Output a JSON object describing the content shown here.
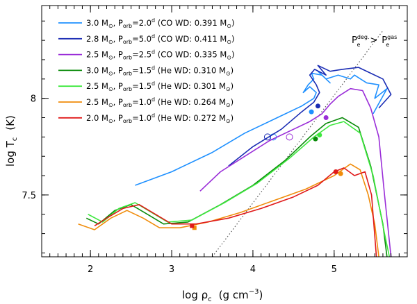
{
  "chart_data": {
    "type": "line",
    "title": "",
    "xlabel": {
      "prefix": "log ",
      "rho": "ρ",
      "sub": "c",
      "units": "(g cm",
      "sup": "−3",
      "close": ")"
    },
    "ylabel": {
      "prefix": "log T",
      "sub": "c",
      "units": "(K)"
    },
    "xlim": [
      1.4,
      5.9
    ],
    "ylim": [
      7.18,
      8.48
    ],
    "xticks": [
      "2",
      "3",
      "4",
      "5"
    ],
    "xtick_values": [
      2,
      3,
      4,
      5
    ],
    "yticks": [
      "7.5",
      "8"
    ],
    "ytick_values": [
      7.5,
      8.0
    ],
    "annotation": {
      "p1": "P",
      "p1sup": "deg.",
      "p1sub": "e",
      "gt": ">",
      "p2": "P",
      "p2sup": "gas",
      "p2sub": "e"
    },
    "degeneracy_line": {
      "label": "Pe_deg = Pe_gas",
      "x": [
        3.5,
        5.6
      ],
      "y": [
        7.18,
        8.35
      ]
    },
    "series": [
      {
        "name": "3.0 M☉, Porb=2.0d (CO WD: 0.391 M☉)",
        "mass": "3.0",
        "porb": "2.0",
        "wdtype": "CO",
        "wdmass": "0.391",
        "color": "#1e90ff",
        "x": [
          2.55,
          3.0,
          3.5,
          3.9,
          4.3,
          4.6,
          4.75,
          4.78,
          4.7,
          4.62,
          4.68,
          4.75,
          4.72,
          4.85,
          4.95,
          4.8,
          4.9,
          5.05,
          5.2,
          5.25,
          5.4,
          5.55,
          5.5,
          5.65,
          5.48
        ],
        "y": [
          7.55,
          7.62,
          7.72,
          7.82,
          7.9,
          7.96,
          8.0,
          8.03,
          8.06,
          8.03,
          8.07,
          8.1,
          8.13,
          8.12,
          8.08,
          8.14,
          8.1,
          8.12,
          8.1,
          8.12,
          8.08,
          8.07,
          8.0,
          8.05,
          7.92
        ],
        "dot": [
          4.72,
          7.93
        ],
        "circle": [
          4.25,
          7.8
        ]
      },
      {
        "name": "2.8 M☉, Porb=5.0d (CO WD: 0.411 M☉)",
        "mass": "2.8",
        "porb": "5.0",
        "wdtype": "CO",
        "wdmass": "0.411",
        "color": "#1a2cb4",
        "x": [
          3.7,
          4.0,
          4.35,
          4.6,
          4.75,
          4.82,
          4.78,
          4.7,
          4.76,
          4.9,
          4.8,
          4.95,
          5.1,
          5.3,
          5.45,
          5.6,
          5.7,
          5.55,
          5.55
        ],
        "y": [
          7.65,
          7.75,
          7.84,
          7.93,
          7.98,
          8.03,
          8.07,
          8.12,
          8.15,
          8.12,
          8.17,
          8.14,
          8.15,
          8.16,
          8.13,
          8.1,
          8.02,
          7.95,
          7.95
        ],
        "dot": [
          4.8,
          7.96
        ],
        "circle": [
          4.18,
          7.8
        ]
      },
      {
        "name": "2.5 M☉, Porb=2.5d (CO WD: 0.335 M☉)",
        "mass": "2.5",
        "porb": "2.5",
        "wdtype": "CO",
        "wdmass": "0.335",
        "color": "#9a2dd8",
        "x": [
          3.35,
          3.6,
          3.9,
          4.2,
          4.5,
          4.7,
          4.85,
          4.95,
          5.05,
          5.2,
          5.35,
          5.45,
          5.55,
          5.62,
          5.7
        ],
        "y": [
          7.52,
          7.62,
          7.7,
          7.78,
          7.84,
          7.88,
          7.92,
          7.97,
          8.01,
          8.05,
          8.04,
          7.95,
          7.8,
          7.5,
          7.18
        ],
        "dot": [
          4.9,
          7.9
        ],
        "circle": [
          4.45,
          7.8
        ]
      },
      {
        "name": "3.0 M☉, Porb=1.5d (He WD: 0.310 M☉)",
        "mass": "3.0",
        "porb": "1.5",
        "wdtype": "He",
        "wdmass": "0.310",
        "color": "#0a8a0a",
        "x": [
          1.95,
          2.1,
          2.3,
          2.5,
          2.7,
          2.9,
          3.2,
          3.6,
          4.0,
          4.4,
          4.7,
          4.9,
          5.1,
          5.3,
          5.45,
          5.6,
          5.65
        ],
        "y": [
          7.38,
          7.35,
          7.42,
          7.45,
          7.4,
          7.35,
          7.36,
          7.45,
          7.55,
          7.68,
          7.8,
          7.87,
          7.9,
          7.85,
          7.65,
          7.35,
          7.18
        ],
        "dot": [
          4.77,
          7.79
        ]
      },
      {
        "name": "2.5 M☉, Porb=1.5d (He WD: 0.301 M☉)",
        "mass": "2.5",
        "porb": "1.5",
        "wdtype": "He",
        "wdmass": "0.301",
        "color": "#3ee83e",
        "x": [
          1.97,
          2.15,
          2.35,
          2.55,
          2.75,
          2.95,
          3.25,
          3.65,
          4.05,
          4.45,
          4.75,
          4.95,
          5.12,
          5.32,
          5.48,
          5.62,
          5.68
        ],
        "y": [
          7.4,
          7.36,
          7.43,
          7.46,
          7.41,
          7.36,
          7.37,
          7.46,
          7.56,
          7.69,
          7.8,
          7.86,
          7.88,
          7.82,
          7.6,
          7.3,
          7.18
        ],
        "dot": [
          4.82,
          7.81
        ]
      },
      {
        "name": "2.5 M☉, Porb=1.0d (He WD: 0.264 M☉)",
        "mass": "2.5",
        "porb": "1.0",
        "wdtype": "He",
        "wdmass": "0.264",
        "color": "#f08c0a",
        "x": [
          1.85,
          2.05,
          2.25,
          2.45,
          2.65,
          2.85,
          3.1,
          3.45,
          3.85,
          4.25,
          4.65,
          5.0,
          5.2,
          5.32,
          5.42,
          5.5,
          5.55
        ],
        "y": [
          7.35,
          7.32,
          7.38,
          7.42,
          7.38,
          7.33,
          7.33,
          7.36,
          7.41,
          7.47,
          7.53,
          7.6,
          7.66,
          7.63,
          7.5,
          7.35,
          7.18
        ],
        "dot": [
          5.08,
          7.61
        ],
        "square": [
          3.28,
          7.33
        ]
      },
      {
        "name": "2.0 M☉, Porb=1.0d (He WD: 0.272 M☉)",
        "mass": "2.0",
        "porb": "1.0",
        "wdtype": "He",
        "wdmass": "0.272",
        "color": "#e01a1a",
        "x": [
          2.05,
          2.2,
          2.4,
          2.6,
          2.8,
          3.0,
          3.3,
          3.7,
          4.1,
          4.5,
          4.8,
          5.0,
          5.12,
          5.25,
          5.38,
          5.46,
          5.52
        ],
        "y": [
          7.34,
          7.38,
          7.43,
          7.45,
          7.4,
          7.35,
          7.35,
          7.38,
          7.43,
          7.49,
          7.55,
          7.62,
          7.64,
          7.6,
          7.62,
          7.5,
          7.18
        ],
        "dot": [
          5.02,
          7.62
        ],
        "square": [
          3.25,
          7.34
        ]
      }
    ]
  }
}
